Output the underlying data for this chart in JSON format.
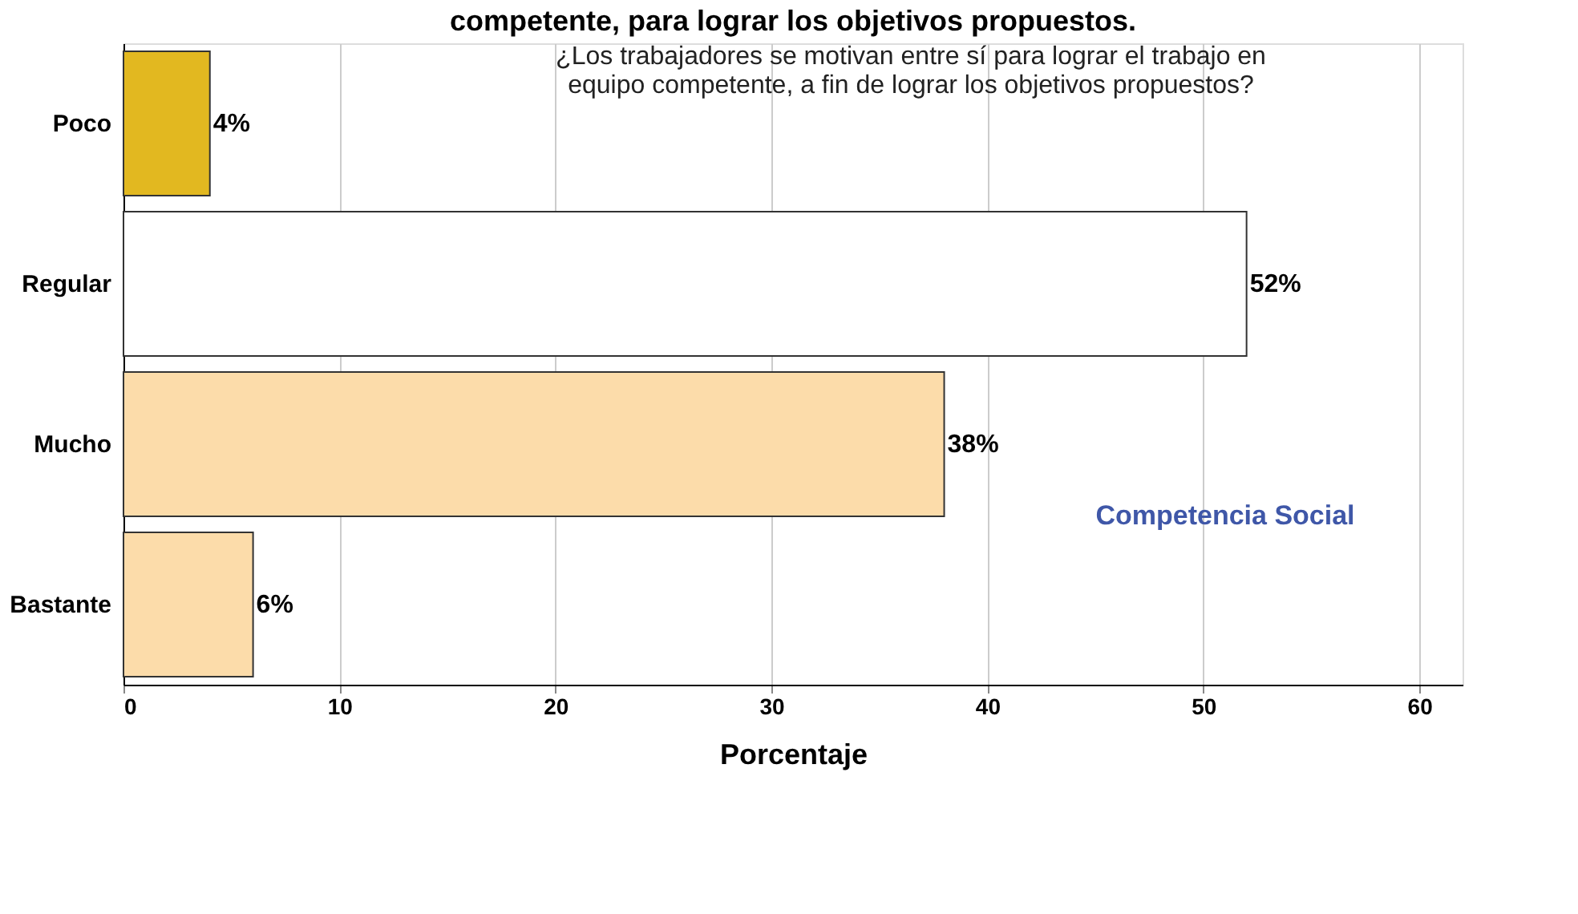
{
  "chart_data": {
    "type": "bar",
    "orientation": "horizontal",
    "title": "competente, para lograr los objetivos propuestos.",
    "xlabel": "Porcentaje",
    "categories": [
      "Poco",
      "Regular",
      "Mucho",
      "Bastante"
    ],
    "values": [
      4,
      52,
      38,
      6
    ],
    "colors": [
      "#e2b820",
      "#ffffff",
      "#fcdcaa",
      "#fcdcaa"
    ],
    "value_labels": [
      "4%",
      "52%",
      "38%",
      "6%"
    ],
    "xlim": [
      0,
      62
    ],
    "xticks": [
      0,
      10,
      20,
      30,
      40,
      50,
      60
    ],
    "grid": "x",
    "annotations": [
      "¿Los trabajadores se motivan entre sí para lograr el trabajo en\nequipo competente, a fin de lograr los objetivos propuestos?",
      "Competencia Social"
    ]
  }
}
